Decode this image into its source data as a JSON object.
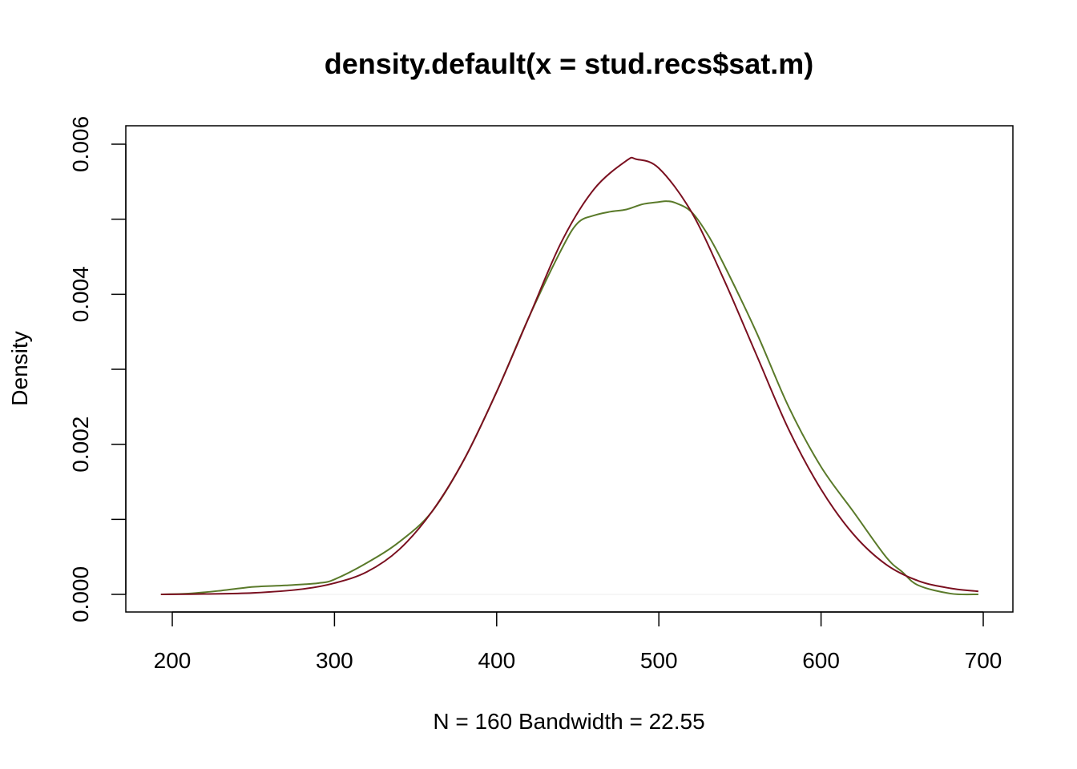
{
  "chart_data": {
    "type": "line",
    "title": "density.default(x = stud.recs$sat.m)",
    "xlabel": "N = 160   Bandwidth = 22.55",
    "ylabel": "Density",
    "xlim": [
      175,
      700
    ],
    "ylim": [
      0,
      0.006
    ],
    "x_ticks": [
      200,
      300,
      400,
      500,
      600,
      700
    ],
    "x_tick_labels": [
      "200",
      "300",
      "400",
      "500",
      "600",
      "700"
    ],
    "y_ticks": [
      0,
      0.001,
      0.002,
      0.003,
      0.004,
      0.005,
      0.006
    ],
    "y_tick_labels": [
      "0.000",
      "",
      "0.002",
      "",
      "0.004",
      "",
      "0.006"
    ],
    "grid": false,
    "series": [
      {
        "color": "#5a7a2a",
        "x": [
          193,
          210,
          230,
          250,
          270,
          290,
          300,
          320,
          340,
          360,
          380,
          400,
          420,
          440,
          450,
          460,
          470,
          480,
          490,
          500,
          505,
          510,
          520,
          530,
          540,
          560,
          580,
          600,
          620,
          640,
          650,
          660,
          680,
          697
        ],
        "y": [
          0.0,
          1e-05,
          5e-05,
          0.0001,
          0.00012,
          0.00015,
          0.0002,
          0.00042,
          0.0007,
          0.0011,
          0.0018,
          0.0027,
          0.0037,
          0.0046,
          0.00495,
          0.00505,
          0.0051,
          0.00513,
          0.0052,
          0.00523,
          0.00524,
          0.00522,
          0.0051,
          0.0048,
          0.0044,
          0.0035,
          0.0025,
          0.0017,
          0.0011,
          0.0005,
          0.0003,
          0.00012,
          1e-05,
          0.0
        ]
      },
      {
        "color": "#7a1020",
        "x": [
          193,
          220,
          250,
          280,
          300,
          320,
          340,
          360,
          380,
          400,
          420,
          440,
          460,
          480,
          486,
          500,
          520,
          540,
          560,
          580,
          600,
          620,
          640,
          660,
          680,
          697
        ],
        "y": [
          0.0,
          5e-06,
          2e-05,
          7e-05,
          0.00015,
          0.0003,
          0.0006,
          0.0011,
          0.0018,
          0.0027,
          0.0037,
          0.0047,
          0.0054,
          0.00578,
          0.0058,
          0.00568,
          0.0051,
          0.0042,
          0.0032,
          0.0022,
          0.0014,
          0.0008,
          0.0004,
          0.00018,
          8e-05,
          4e-05
        ]
      }
    ]
  }
}
